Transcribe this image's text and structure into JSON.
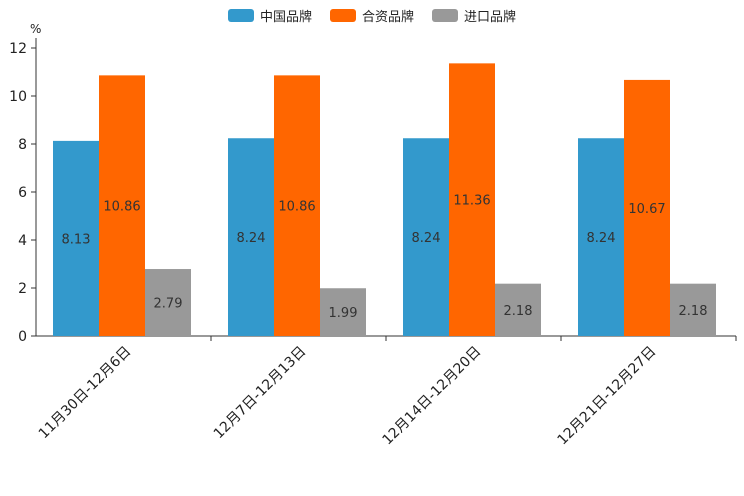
{
  "chart_data": {
    "type": "bar",
    "title": "",
    "unit": "%",
    "xlabel": "",
    "ylabel": "%",
    "ylim": [
      0,
      12
    ],
    "yticks": [
      "0",
      "2",
      "4",
      "6",
      "8",
      "10",
      "12"
    ],
    "categories": [
      "11月30日-12月6日",
      "12月7日-12月13日",
      "12月14日-12月20日",
      "12月21日-12月27日"
    ],
    "series": [
      {
        "name": "中国品牌",
        "color": "#3399cc",
        "values": [
          8.13,
          8.24,
          8.24,
          8.24
        ],
        "labels": [
          "8.13",
          "8.24",
          "8.24",
          "8.24"
        ]
      },
      {
        "name": "合资品牌",
        "color": "#ff6600",
        "values": [
          10.86,
          10.86,
          11.36,
          10.67
        ],
        "labels": [
          "10.86",
          "10.86",
          "11.36",
          "10.67"
        ]
      },
      {
        "name": "进口品牌",
        "color": "#999999",
        "values": [
          2.79,
          1.99,
          2.18,
          2.18
        ],
        "labels": [
          "2.79",
          "1.99",
          "2.18",
          "2.18"
        ]
      }
    ],
    "legend_position": "top-center",
    "grid": false
  }
}
